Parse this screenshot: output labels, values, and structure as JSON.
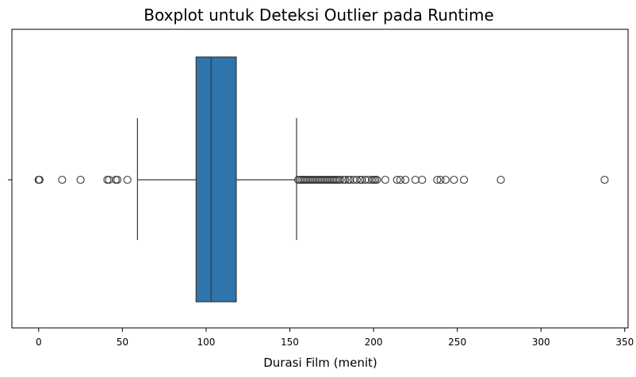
{
  "chart_data": {
    "type": "boxplot",
    "title": "Boxplot untuk Deteksi Outlier pada Runtime",
    "xlabel": "Durasi Film (menit)",
    "ylabel": "",
    "xlim": [
      -16,
      352
    ],
    "xticks": [
      0,
      50,
      100,
      150,
      200,
      250,
      300,
      350
    ],
    "xtick_labels": [
      "0",
      "50",
      "100",
      "150",
      "200",
      "250",
      "300",
      "350"
    ],
    "grid": false,
    "box": {
      "whisker_low": 59,
      "q1": 94,
      "median": 103,
      "q3": 118,
      "whisker_high": 154,
      "color": "#2f74aa"
    },
    "outliers": [
      0,
      0,
      0.5,
      14,
      25,
      41,
      42,
      46,
      47,
      53,
      155,
      156,
      157,
      158,
      159,
      160,
      161,
      162,
      163,
      164,
      165,
      166,
      167,
      168,
      169,
      170,
      171,
      172,
      173,
      174,
      175,
      176,
      177,
      178,
      179,
      180,
      182,
      183,
      185,
      186,
      188,
      190,
      192,
      193,
      195,
      197,
      199,
      200,
      201,
      202,
      207,
      214,
      216,
      219,
      225,
      229,
      238,
      240,
      243,
      248,
      254,
      276,
      338
    ]
  }
}
